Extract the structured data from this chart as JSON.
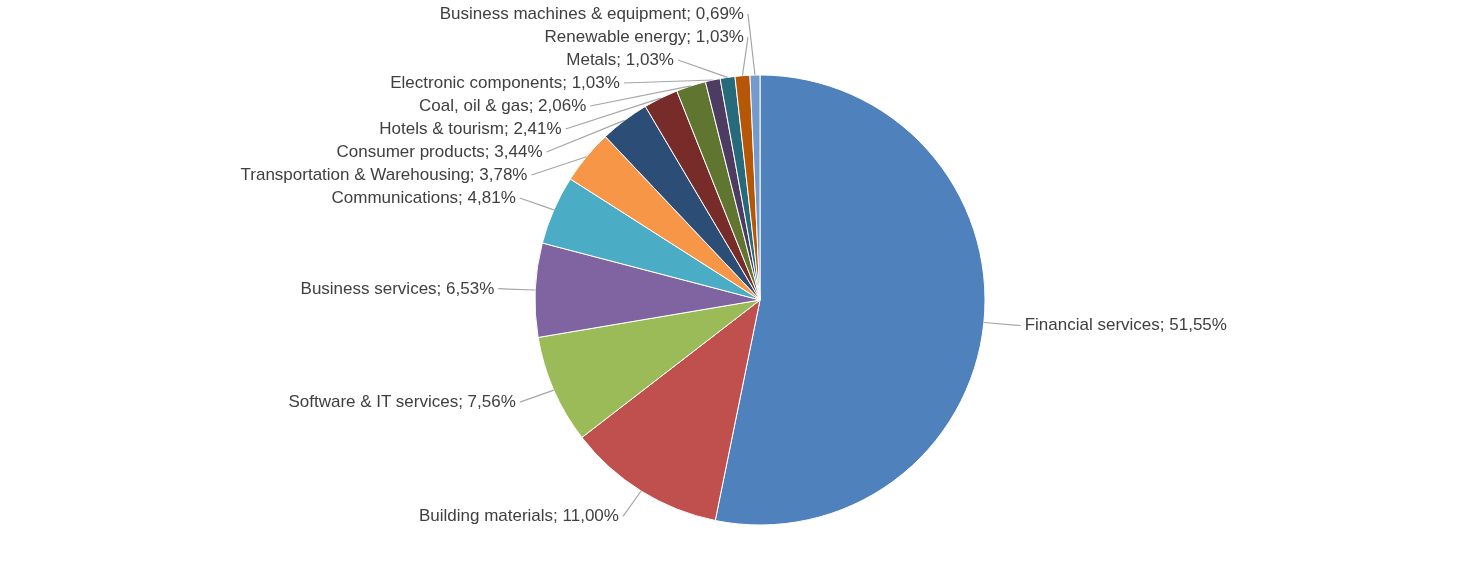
{
  "chart_data": {
    "type": "pie",
    "categories": [
      "Financial services",
      "Building materials",
      "Software & IT services",
      "Business services",
      "Communications",
      "Transportation & Warehousing",
      "Consumer products",
      "Hotels & tourism",
      "Coal, oil & gas",
      "Electronic components",
      "Metals",
      "Renewable energy",
      "Business machines & equipment"
    ],
    "values": [
      51.55,
      11.0,
      7.56,
      6.53,
      4.81,
      3.78,
      3.44,
      2.41,
      2.06,
      1.03,
      1.03,
      1.03,
      0.69
    ],
    "value_labels": [
      "51,55%",
      "11,00%",
      "7,56%",
      "6,53%",
      "4,81%",
      "3,78%",
      "3,44%",
      "2,41%",
      "2,06%",
      "1,03%",
      "1,03%",
      "1,03%",
      "0,69%"
    ],
    "colors": [
      "#4f81bd",
      "#c0504d",
      "#9bbb59",
      "#8064a2",
      "#4bacc6",
      "#f79646",
      "#2c4d75",
      "#772c2a",
      "#5f7530",
      "#4d3b62",
      "#276a7c",
      "#b65708",
      "#729aca"
    ]
  }
}
